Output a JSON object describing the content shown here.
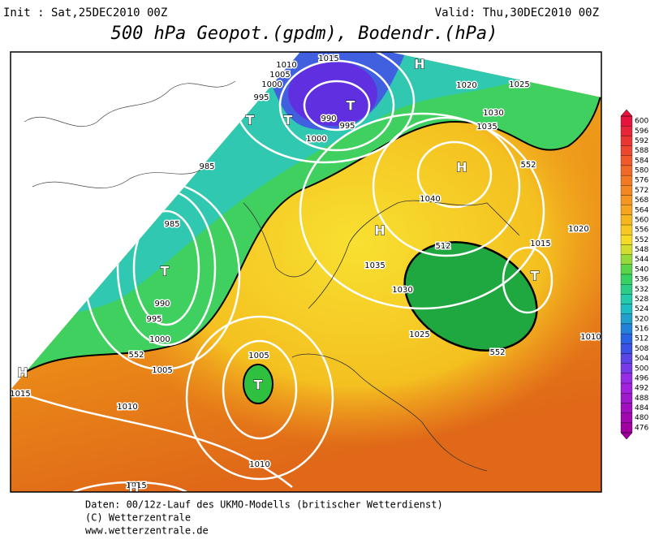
{
  "header": {
    "init": "Init : Sat,25DEC2010 00Z",
    "valid": "Valid: Thu,30DEC2010 00Z",
    "title": "500 hPa Geopot.(gpdm), Bodendr.(hPa)"
  },
  "colorbar": {
    "labels": [
      "600",
      "596",
      "592",
      "588",
      "584",
      "580",
      "576",
      "572",
      "568",
      "564",
      "560",
      "556",
      "552",
      "548",
      "544",
      "540",
      "536",
      "532",
      "528",
      "524",
      "520",
      "516",
      "512",
      "508",
      "504",
      "500",
      "496",
      "492",
      "488",
      "484",
      "480",
      "476"
    ]
  },
  "map": {
    "labels": [
      "1015",
      "1010",
      "1005",
      "1000",
      "995",
      "990",
      "995",
      "1000",
      "H",
      "T",
      "T",
      "T",
      "1020",
      "1025",
      "1030",
      "1035",
      "H",
      "552",
      "985",
      "985",
      "T",
      "990",
      "995",
      "1000",
      "552",
      "1040",
      "H",
      "1035",
      "1030",
      "512",
      "1015",
      "1020",
      "T",
      "1025",
      "552",
      "1010",
      "H",
      "1015",
      "1005",
      "1010",
      "1005",
      "T",
      "1010",
      "1015",
      "H"
    ]
  },
  "footer": {
    "lines": [
      "Daten: 00/12z-Lauf des UKMO-Modells (britischer Wetterdienst)",
      "(C) Wetterzentrale",
      "www.wetterzentrale.de"
    ]
  }
}
